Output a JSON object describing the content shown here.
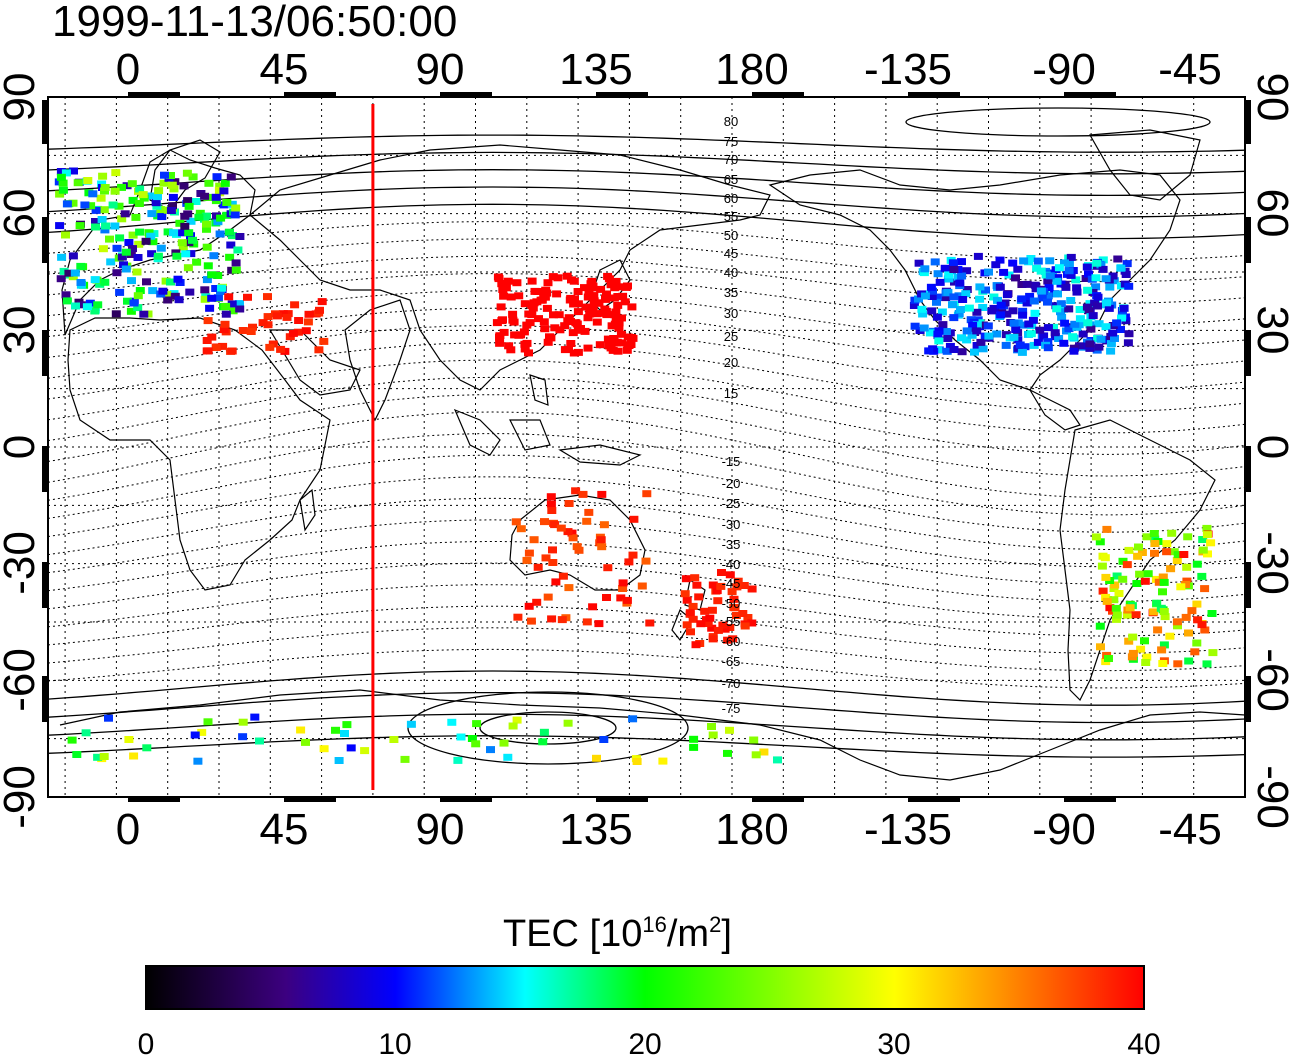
{
  "title": "1999-11-13/06:50:00",
  "axes": {
    "top_ticks": [
      "0",
      "45",
      "90",
      "135",
      "180",
      "-135",
      "-90",
      "-45"
    ],
    "bottom_ticks": [
      "0",
      "45",
      "90",
      "135",
      "180",
      "-135",
      "-90",
      "-45"
    ],
    "left_ticks": [
      "90",
      "60",
      "30",
      "0",
      "-30",
      "-60",
      "-90"
    ],
    "right_ticks": [
      "90",
      "60",
      "30",
      "0",
      "-30",
      "-60",
      "-90"
    ]
  },
  "contour_labels": [
    "80",
    "75",
    "70",
    "65",
    "60",
    "55",
    "50",
    "45",
    "40",
    "35",
    "30",
    "25",
    "20",
    "15",
    "-15",
    "-20",
    "-25",
    "-30",
    "-35",
    "-40",
    "-45",
    "-50",
    "-55",
    "-60",
    "-65",
    "-70",
    "-75"
  ],
  "colorbar": {
    "label_main": "TEC  [10",
    "label_sup1": "16",
    "label_mid": "/m",
    "label_sup2": "2",
    "label_end": "]",
    "ticks": [
      "0",
      "10",
      "20",
      "30",
      "40"
    ],
    "range": [
      0,
      40
    ],
    "colors": [
      "#000000",
      "#3c0080",
      "#0000ff",
      "#00ffff",
      "#00ff00",
      "#ffff00",
      "#ff0000"
    ]
  },
  "marker_line": {
    "longitude": 75,
    "color": "#ff0000"
  },
  "chart_data": {
    "type": "heatmap",
    "title": "1999-11-13/06:50:00",
    "xlim": [
      -20,
      330
    ],
    "ylim": [
      -90,
      90
    ],
    "value_range": [
      0,
      40
    ],
    "clusters": [
      {
        "region": "Europe",
        "lon": [
          -18,
          35
        ],
        "lat": [
          35,
          72
        ],
        "tec": [
          4,
          28
        ]
      },
      {
        "region": "Middle East",
        "lon": [
          25,
          60
        ],
        "lat": [
          25,
          40
        ],
        "tec": [
          38,
          40
        ]
      },
      {
        "region": "East Asia",
        "lon": [
          110,
          150
        ],
        "lat": [
          25,
          45
        ],
        "tec": [
          40,
          40
        ]
      },
      {
        "region": "North America",
        "lon": [
          -128,
          -65
        ],
        "lat": [
          25,
          50
        ],
        "tec": [
          6,
          16
        ]
      },
      {
        "region": "South America",
        "lon": [
          -75,
          -40
        ],
        "lat": [
          -55,
          -20
        ],
        "tec": [
          18,
          40
        ]
      },
      {
        "region": "Australia",
        "lon": [
          115,
          155
        ],
        "lat": [
          -45,
          -10
        ],
        "tec": [
          36,
          40
        ]
      },
      {
        "region": "New Zealand",
        "lon": [
          165,
          185
        ],
        "lat": [
          -50,
          -30
        ],
        "tec": [
          38,
          40
        ]
      },
      {
        "region": "Antarctica rim",
        "lon": [
          -20,
          200
        ],
        "lat": [
          -80,
          -68
        ],
        "tec": [
          10,
          32
        ]
      }
    ]
  }
}
